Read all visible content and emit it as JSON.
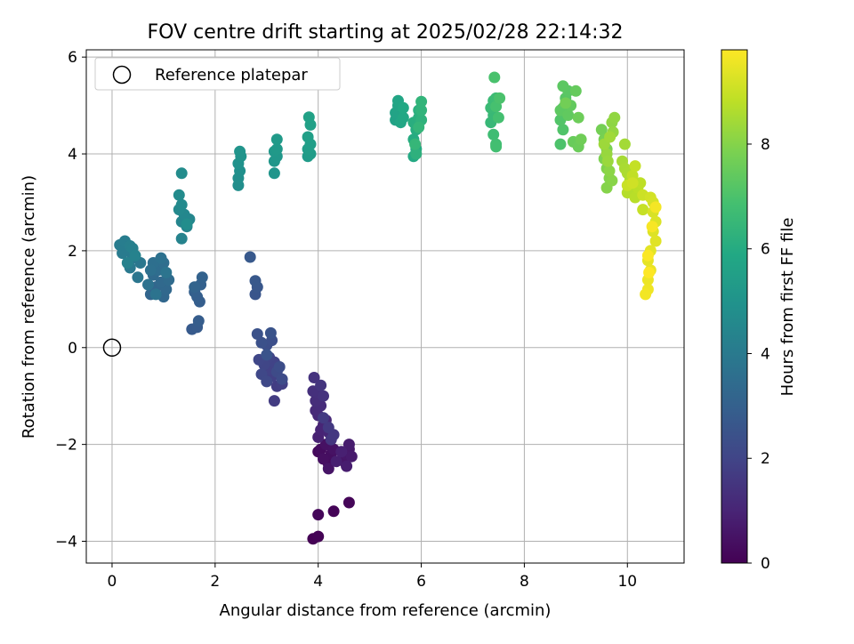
{
  "chart_data": {
    "type": "scatter",
    "title": "FOV centre drift starting at 2025/02/28 22:14:32",
    "xlabel": "Angular distance from reference (arcmin)",
    "ylabel": "Rotation from reference (arcmin)",
    "xlim": [
      -0.5,
      11.1
    ],
    "ylim": [
      -4.45,
      6.15
    ],
    "xticks": [
      0,
      2,
      4,
      6,
      8,
      10
    ],
    "yticks": [
      -4,
      -2,
      0,
      2,
      4,
      6
    ],
    "grid": true,
    "legend": {
      "position": "top-left",
      "entries": [
        "Reference platepar"
      ]
    },
    "reference_point": {
      "x": 0,
      "y": 0,
      "marker": "hollow-circle",
      "label": "Reference platepar"
    },
    "colorbar": {
      "label": "Hours from first FF file",
      "colormap": "viridis",
      "min": 0,
      "max": 9.8,
      "ticks": [
        0,
        2,
        4,
        6,
        8
      ]
    },
    "colormap_stops": [
      "#440154",
      "#482475",
      "#414487",
      "#355f8d",
      "#2a788e",
      "#21918c",
      "#22a884",
      "#44bf70",
      "#7ad151",
      "#bddf26",
      "#fde725"
    ],
    "series": [
      {
        "points": [
          [
            3.9,
            -3.95
          ],
          [
            4.0,
            -3.9
          ],
          [
            4.3,
            -3.38
          ],
          [
            4.6,
            -3.2
          ],
          [
            4.0,
            -3.45
          ],
          [
            4.0,
            -2.15
          ],
          [
            4.2,
            -2.4
          ],
          [
            4.05,
            -2.1
          ],
          [
            4.25,
            -2.2
          ],
          [
            4.1,
            -2.3
          ],
          [
            4.15,
            -2.0
          ],
          [
            4.3,
            -2.1
          ],
          [
            4.2,
            -2.5
          ],
          [
            4.5,
            -2.35
          ],
          [
            4.55,
            -2.2
          ],
          [
            4.6,
            -2.1
          ],
          [
            4.65,
            -2.25
          ],
          [
            4.6,
            -2.0
          ],
          [
            4.55,
            -2.45
          ],
          [
            4.35,
            -2.35
          ],
          [
            4.45,
            -2.15
          ],
          [
            4.0,
            -1.85
          ],
          [
            4.05,
            -1.7
          ],
          [
            4.1,
            -1.6
          ],
          [
            4.2,
            -1.75
          ],
          [
            4.15,
            -1.5
          ],
          [
            4.0,
            -1.4
          ],
          [
            3.95,
            -1.3
          ],
          [
            4.05,
            -1.2
          ],
          [
            3.95,
            -1.1
          ],
          [
            4.0,
            -0.95
          ],
          [
            3.9,
            -0.9
          ],
          [
            4.1,
            -1.0
          ],
          [
            3.92,
            -0.62
          ],
          [
            4.05,
            -0.78
          ],
          [
            4.25,
            -1.9
          ],
          [
            4.3,
            -1.8
          ],
          [
            4.2,
            -1.65
          ],
          [
            4.1,
            -1.45
          ],
          [
            3.15,
            -1.1
          ],
          [
            3.2,
            -0.8
          ],
          [
            3.3,
            -0.75
          ],
          [
            3.1,
            -0.6
          ],
          [
            3.05,
            -0.45
          ],
          [
            3.15,
            -0.3
          ],
          [
            3.05,
            -0.2
          ],
          [
            2.95,
            -0.35
          ],
          [
            2.85,
            -0.25
          ],
          [
            2.9,
            -0.55
          ],
          [
            3.0,
            -0.7
          ],
          [
            3.2,
            -0.5
          ],
          [
            3.3,
            -0.65
          ],
          [
            3.25,
            -0.4
          ],
          [
            3.0,
            0.05
          ],
          [
            3.1,
            0.15
          ],
          [
            2.9,
            0.1
          ],
          [
            2.82,
            0.28
          ],
          [
            3.08,
            0.3
          ],
          [
            3.0,
            -0.15
          ],
          [
            2.78,
            1.1
          ],
          [
            2.82,
            1.25
          ],
          [
            2.78,
            1.38
          ],
          [
            2.68,
            1.87
          ],
          [
            1.55,
            0.38
          ],
          [
            1.65,
            0.42
          ],
          [
            1.68,
            0.55
          ],
          [
            1.7,
            0.95
          ],
          [
            1.65,
            1.05
          ],
          [
            1.6,
            1.15
          ],
          [
            1.72,
            1.3
          ],
          [
            1.75,
            1.45
          ],
          [
            1.6,
            1.25
          ],
          [
            0.75,
            1.1
          ],
          [
            0.85,
            1.25
          ],
          [
            1.0,
            1.05
          ],
          [
            1.05,
            1.2
          ],
          [
            0.95,
            1.35
          ],
          [
            0.8,
            1.5
          ],
          [
            1.1,
            1.4
          ],
          [
            0.9,
            1.6
          ],
          [
            1.0,
            1.75
          ],
          [
            0.8,
            1.75
          ],
          [
            0.75,
            1.6
          ],
          [
            0.95,
            1.85
          ],
          [
            0.7,
            1.3
          ],
          [
            0.85,
            1.1
          ],
          [
            1.05,
            1.55
          ],
          [
            0.5,
            1.45
          ],
          [
            0.55,
            1.75
          ],
          [
            0.4,
            1.85
          ],
          [
            0.35,
            1.65
          ],
          [
            0.3,
            2.0
          ],
          [
            0.2,
            1.95
          ],
          [
            0.15,
            2.12
          ],
          [
            0.25,
            2.2
          ],
          [
            0.35,
            2.1
          ],
          [
            0.4,
            2.05
          ],
          [
            0.3,
            1.75
          ],
          [
            0.45,
            1.9
          ],
          [
            1.35,
            2.25
          ],
          [
            1.45,
            2.5
          ],
          [
            1.35,
            2.6
          ],
          [
            1.5,
            2.65
          ],
          [
            1.4,
            2.75
          ],
          [
            1.3,
            2.85
          ],
          [
            1.35,
            2.95
          ],
          [
            1.3,
            3.15
          ],
          [
            1.35,
            3.6
          ],
          [
            1.45,
            2.55
          ],
          [
            2.45,
            3.35
          ],
          [
            2.45,
            3.5
          ],
          [
            2.48,
            3.65
          ],
          [
            2.45,
            3.8
          ],
          [
            2.5,
            3.95
          ],
          [
            2.48,
            4.05
          ],
          [
            3.15,
            3.6
          ],
          [
            3.15,
            3.85
          ],
          [
            3.2,
            3.95
          ],
          [
            3.15,
            4.05
          ],
          [
            3.2,
            4.1
          ],
          [
            3.2,
            4.3
          ],
          [
            3.8,
            3.95
          ],
          [
            3.85,
            4.0
          ],
          [
            3.8,
            4.1
          ],
          [
            3.85,
            4.2
          ],
          [
            3.8,
            4.35
          ],
          [
            3.85,
            4.6
          ],
          [
            3.82,
            4.76
          ],
          [
            5.5,
            4.7
          ],
          [
            5.5,
            4.85
          ],
          [
            5.55,
            5.0
          ],
          [
            5.55,
            5.1
          ],
          [
            5.6,
            4.65
          ],
          [
            5.65,
            4.75
          ],
          [
            5.65,
            4.95
          ],
          [
            5.85,
            3.95
          ],
          [
            5.9,
            4.1
          ],
          [
            5.85,
            4.3
          ],
          [
            5.9,
            4.5
          ],
          [
            5.85,
            4.65
          ],
          [
            5.95,
            4.75
          ],
          [
            5.95,
            4.9
          ],
          [
            5.9,
            4.0
          ],
          [
            6.0,
            4.7
          ],
          [
            6.0,
            4.9
          ],
          [
            6.0,
            5.08
          ],
          [
            5.95,
            4.55
          ],
          [
            5.88,
            4.2
          ],
          [
            7.35,
            4.65
          ],
          [
            7.4,
            4.8
          ],
          [
            7.35,
            4.95
          ],
          [
            7.4,
            5.1
          ],
          [
            7.45,
            5.15
          ],
          [
            7.4,
            4.4
          ],
          [
            7.45,
            4.2
          ],
          [
            7.45,
            4.15
          ],
          [
            7.5,
            4.75
          ],
          [
            7.45,
            4.98
          ],
          [
            7.42,
            5.58
          ],
          [
            7.52,
            5.15
          ],
          [
            8.7,
            4.2
          ],
          [
            8.75,
            4.5
          ],
          [
            8.7,
            4.7
          ],
          [
            8.75,
            4.95
          ],
          [
            8.8,
            5.15
          ],
          [
            8.85,
            5.3
          ],
          [
            8.75,
            5.4
          ],
          [
            8.7,
            4.9
          ],
          [
            8.85,
            4.8
          ],
          [
            8.9,
            5.0
          ],
          [
            9.0,
            5.3
          ],
          [
            8.95,
            4.25
          ],
          [
            9.05,
            4.15
          ],
          [
            9.05,
            4.75
          ],
          [
            9.1,
            4.3
          ],
          [
            8.8,
            5.05
          ],
          [
            9.5,
            4.5
          ],
          [
            9.55,
            4.3
          ],
          [
            9.6,
            4.1
          ],
          [
            9.55,
            3.9
          ],
          [
            9.6,
            3.7
          ],
          [
            9.65,
            3.5
          ],
          [
            9.6,
            3.3
          ],
          [
            9.7,
            3.45
          ],
          [
            9.65,
            3.65
          ],
          [
            9.7,
            4.65
          ],
          [
            9.75,
            4.75
          ],
          [
            9.72,
            4.45
          ],
          [
            9.6,
            4.0
          ],
          [
            9.62,
            3.85
          ],
          [
            9.55,
            4.2
          ],
          [
            9.66,
            4.35
          ],
          [
            9.95,
            4.2
          ],
          [
            9.9,
            3.85
          ],
          [
            9.95,
            3.7
          ],
          [
            10.0,
            3.6
          ],
          [
            10.05,
            3.45
          ],
          [
            10.1,
            3.3
          ],
          [
            10.0,
            3.2
          ],
          [
            10.15,
            3.1
          ],
          [
            10.2,
            3.3
          ],
          [
            10.25,
            3.4
          ],
          [
            10.1,
            3.55
          ],
          [
            10.15,
            3.75
          ],
          [
            10.3,
            2.85
          ],
          [
            10.0,
            3.35
          ],
          [
            10.3,
            3.15
          ],
          [
            10.1,
            3.4
          ],
          [
            10.45,
            3.1
          ],
          [
            10.5,
            3.0
          ],
          [
            10.5,
            2.8
          ],
          [
            10.55,
            2.6
          ],
          [
            10.5,
            2.4
          ],
          [
            10.55,
            2.2
          ],
          [
            10.45,
            2.0
          ],
          [
            10.4,
            1.8
          ],
          [
            10.45,
            1.6
          ],
          [
            10.4,
            1.4
          ],
          [
            10.4,
            1.2
          ],
          [
            10.35,
            1.1
          ],
          [
            10.55,
            2.9
          ],
          [
            10.48,
            2.5
          ],
          [
            10.4,
            1.9
          ],
          [
            10.42,
            1.55
          ]
        ]
      }
    ]
  }
}
